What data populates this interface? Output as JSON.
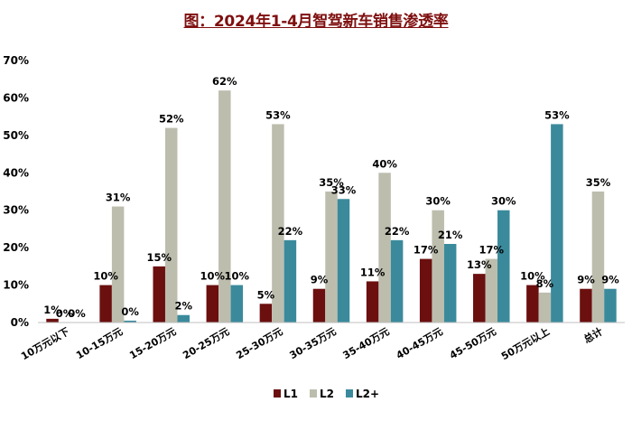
{
  "title": "图：2024年1-4月智驾新车销售渗透率",
  "chart_data": {
    "type": "bar",
    "title": "图：2024年1-4月智驾新车销售渗透率",
    "categories": [
      "10万元以下",
      "10-15万元",
      "15-20万元",
      "20-25万元",
      "25-30万元",
      "30-35万元",
      "35-40万元",
      "40-45万元",
      "45-50万元",
      "50万元以上",
      "总计"
    ],
    "series": [
      {
        "name": "L1",
        "color": "#6b0f0f",
        "values": [
          1,
          10,
          15,
          10,
          5,
          9,
          11,
          17,
          13,
          10,
          9
        ],
        "labels": [
          "1%",
          "10%",
          "15%",
          "10%",
          "5%",
          "9%",
          "11%",
          "17%",
          "13%",
          "10%",
          "9%"
        ]
      },
      {
        "name": "L2",
        "color": "#bdbdae",
        "values": [
          0,
          31,
          52,
          62,
          53,
          35,
          40,
          30,
          17,
          8,
          35
        ],
        "labels": [
          "0%",
          "31%",
          "52%",
          "62%",
          "53%",
          "35%",
          "40%",
          "30%",
          "17%",
          "8%",
          "35%"
        ]
      },
      {
        "name": "L2+",
        "color": "#3a8a9c",
        "values": [
          0,
          0.5,
          2,
          10,
          22,
          33,
          22,
          21,
          30,
          53,
          9
        ],
        "labels": [
          "0%",
          "0%",
          "2%",
          "10%",
          "22%",
          "33%",
          "22%",
          "21%",
          "30%",
          "53%",
          "9%"
        ]
      }
    ],
    "ylim": [
      0,
      70
    ],
    "yticks": [
      0,
      10,
      20,
      30,
      40,
      50,
      60,
      70
    ],
    "ytick_labels": [
      "0%",
      "10%",
      "20%",
      "30%",
      "40%",
      "50%",
      "60%",
      "70%"
    ],
    "xlabel": "",
    "ylabel": "",
    "grid": false,
    "legend_position": "bottom-center"
  }
}
